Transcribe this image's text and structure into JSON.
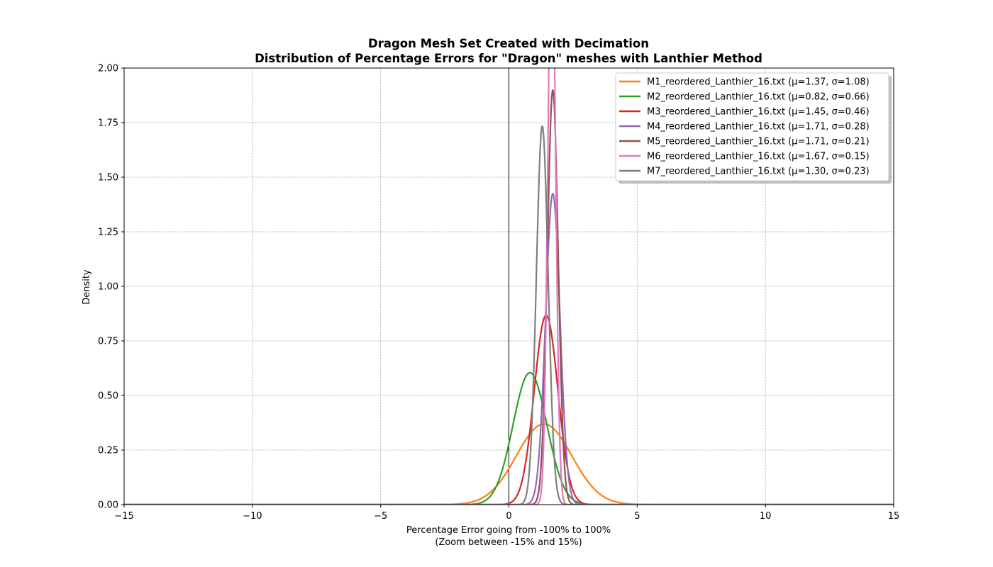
{
  "chart_data": {
    "type": "line",
    "title": "Dragon Mesh Set Created with Decimation",
    "subtitle": "Distribution of Percentage Errors for \"Dragon\" meshes with Lanthier Method",
    "xlabel": "Percentage Error going from -100% to 100%",
    "xlabel2": "(Zoom between -15% and 15%)",
    "ylabel": "Density",
    "xlim": [
      -15,
      15
    ],
    "ylim": [
      0,
      2.0
    ],
    "xticks": [
      -15,
      -10,
      -5,
      0,
      5,
      10,
      15
    ],
    "xtick_labels": [
      "−15",
      "−10",
      "−5",
      "0",
      "5",
      "10",
      "15"
    ],
    "yticks": [
      0,
      0.25,
      0.5,
      0.75,
      1.0,
      1.25,
      1.5,
      1.75,
      2.0
    ],
    "ytick_labels": [
      "0.00",
      "0.25",
      "0.50",
      "0.75",
      "1.00",
      "1.25",
      "1.50",
      "1.75",
      "2.00"
    ],
    "grid": true,
    "vertical_reference_line_x": 0,
    "legend_position": "top-right",
    "series": [
      {
        "name": "M1_reordered_Lanthier_16.txt (μ=1.37, σ=1.08)",
        "mu": 1.37,
        "sigma": 1.08,
        "color": "#ff7f0e"
      },
      {
        "name": "M2_reordered_Lanthier_16.txt (μ=0.82, σ=0.66)",
        "mu": 0.82,
        "sigma": 0.66,
        "color": "#2ca02c"
      },
      {
        "name": "M3_reordered_Lanthier_16.txt (μ=1.45, σ=0.46)",
        "mu": 1.45,
        "sigma": 0.46,
        "color": "#d62728"
      },
      {
        "name": "M4_reordered_Lanthier_16.txt (μ=1.71, σ=0.28)",
        "mu": 1.71,
        "sigma": 0.28,
        "color": "#9467bd"
      },
      {
        "name": "M5_reordered_Lanthier_16.txt (μ=1.71, σ=0.21)",
        "mu": 1.71,
        "sigma": 0.21,
        "color": "#8c564b"
      },
      {
        "name": "M6_reordered_Lanthier_16.txt (μ=1.67, σ=0.15)",
        "mu": 1.67,
        "sigma": 0.15,
        "color": "#e377c2"
      },
      {
        "name": "M7_reordered_Lanthier_16.txt (μ=1.30, σ=0.23)",
        "mu": 1.3,
        "sigma": 0.23,
        "color": "#7f7f7f"
      }
    ]
  }
}
